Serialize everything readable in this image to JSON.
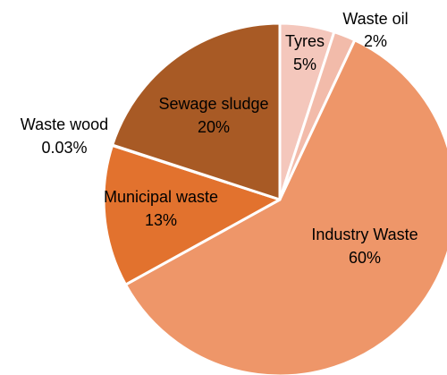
{
  "chart_data": {
    "type": "pie",
    "title": "",
    "start_angle_deg": 0,
    "direction": "clockwise",
    "slices": [
      {
        "label": "Tyres",
        "value": 5,
        "value_label": "5%",
        "color": "#F4C7BC"
      },
      {
        "label": "Waste oil",
        "value": 2,
        "value_label": "2%",
        "color": "#F2BBAA"
      },
      {
        "label": "Industry Waste",
        "value": 60,
        "value_label": "60%",
        "color": "#EE9669"
      },
      {
        "label": "Municipal waste",
        "value": 13,
        "value_label": "13%",
        "color": "#E2722E"
      },
      {
        "label": "Waste wood",
        "value": 0.03,
        "value_label": "0.03%",
        "color": "#B05F2A"
      },
      {
        "label": "Sewage sludge",
        "value": 20,
        "value_label": "20%",
        "color": "#A85A25"
      }
    ],
    "legend": "none"
  }
}
